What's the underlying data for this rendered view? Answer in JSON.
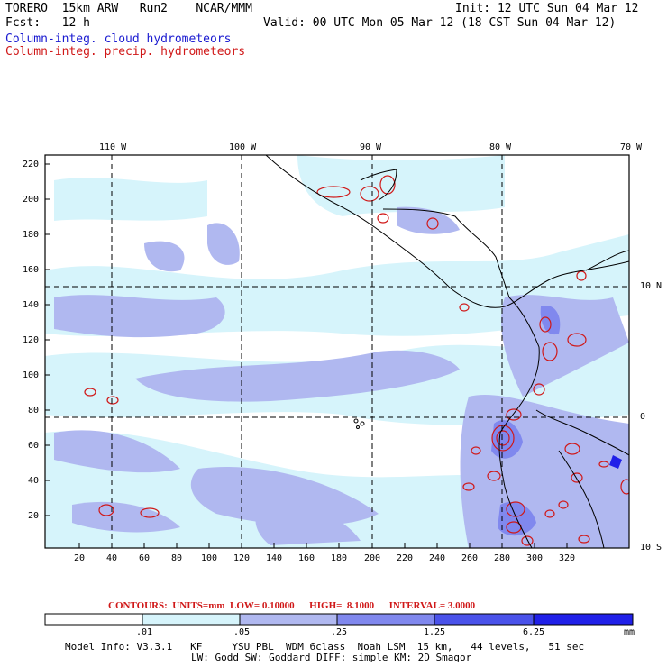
{
  "header": {
    "left1": "TORERO  15km ARW   Run2    NCAR/MMM",
    "left2": "Fcst:   12 h",
    "right1": "Init: 12 UTC Sun 04 Mar 12",
    "right2": "Valid: 00 UTC Mon 05 Mar 12 (18 CST Sun 04 Mar 12)",
    "legend_cloud": "Column-integ. cloud hydrometeors",
    "legend_precip": "Column-integ. precip. hydrometeors"
  },
  "map": {
    "lon_labels": [
      "110 W",
      "100 W",
      "90 W",
      "80 W",
      "70 W"
    ],
    "lat_labels": [
      "10 N",
      "0",
      "10 S"
    ],
    "y_ticks": [
      "220",
      "200",
      "180",
      "160",
      "140",
      "120",
      "100",
      "80",
      "60",
      "40",
      "20"
    ],
    "x_ticks": [
      "20",
      "40",
      "60",
      "80",
      "100",
      "120",
      "140",
      "160",
      "180",
      "200",
      "220",
      "240",
      "260",
      "280",
      "300",
      "320"
    ]
  },
  "contours": {
    "label": "CONTOURS:  UNITS=mm  LOW= 0.10000      HIGH=  8.1000      INTERVAL= 3.0000"
  },
  "colorbar": {
    "labels": [
      ".01",
      ".05",
      ".25",
      "1.25",
      "6.25"
    ],
    "unit": "mm",
    "colors": [
      "#ffffff",
      "#d6f4fb",
      "#b0b8f0",
      "#8088ee",
      "#4a52ea",
      "#2020e8"
    ]
  },
  "footer": {
    "line1": "Model Info: V3.3.1   KF     YSU PBL  WDM 6class  Noah LSM  15 km,   44 levels,   51 sec",
    "line2": "LW: Godd SW: Goddard DIFF: simple KM: 2D Smagor"
  }
}
